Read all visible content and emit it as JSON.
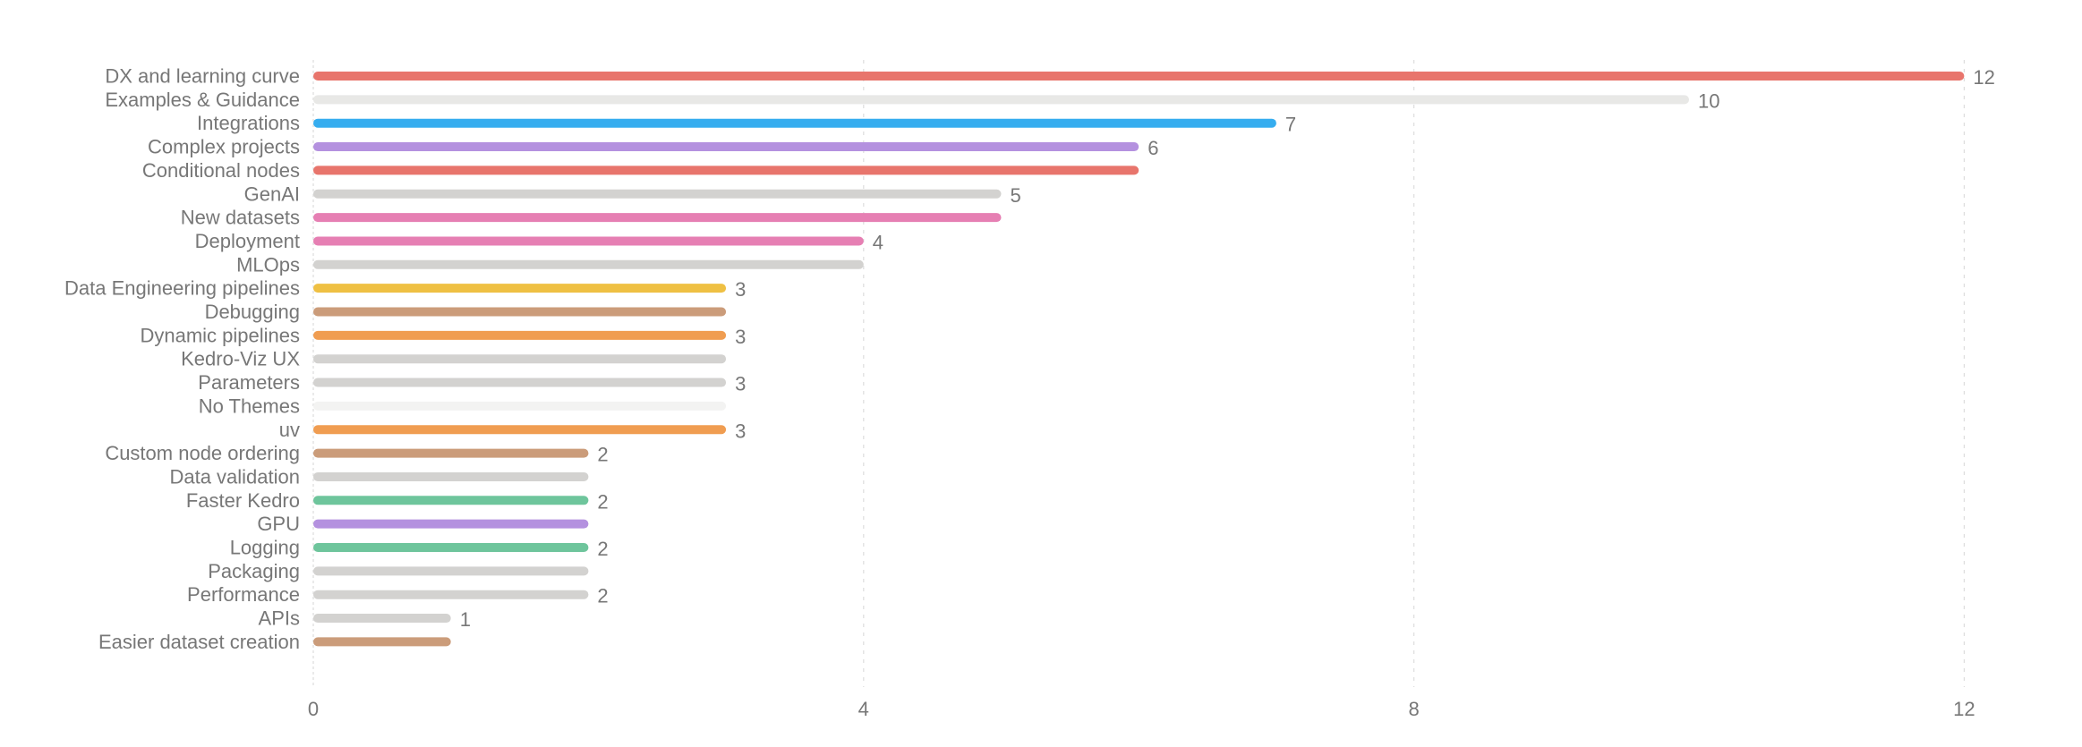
{
  "chart_data": {
    "type": "bar",
    "orientation": "horizontal",
    "title": "",
    "xlabel": "",
    "ylabel": "",
    "xlim": [
      0,
      13
    ],
    "x_ticks": [
      "0",
      "4",
      "8",
      "12"
    ],
    "grid": "vertical dashed",
    "legend": "none",
    "items": [
      {
        "label": "DX and learning curve",
        "value": 12,
        "value_label": "12",
        "color": "#E8756C"
      },
      {
        "label": "Examples & Guidance",
        "value": 10,
        "value_label": "10",
        "color": "#E8E8E6"
      },
      {
        "label": "Integrations",
        "value": 7,
        "value_label": "7",
        "color": "#36ADEF"
      },
      {
        "label": "Complex projects",
        "value": 6,
        "value_label": "6",
        "color": "#B491DF"
      },
      {
        "label": "Conditional nodes",
        "value": 6,
        "value_label": "",
        "color": "#E8756C"
      },
      {
        "label": "GenAI",
        "value": 5,
        "value_label": "5",
        "color": "#D3D2D0"
      },
      {
        "label": "New datasets",
        "value": 5,
        "value_label": "",
        "color": "#E67FB3"
      },
      {
        "label": "Deployment",
        "value": 4,
        "value_label": "4",
        "color": "#E67FB3"
      },
      {
        "label": "MLOps",
        "value": 4,
        "value_label": "",
        "color": "#D3D2D0"
      },
      {
        "label": "Data Engineering pipelines",
        "value": 3,
        "value_label": "3",
        "color": "#EFC043"
      },
      {
        "label": "Debugging",
        "value": 3,
        "value_label": "",
        "color": "#CB9C7A"
      },
      {
        "label": "Dynamic pipelines",
        "value": 3,
        "value_label": "3",
        "color": "#F09D51"
      },
      {
        "label": "Kedro-Viz UX",
        "value": 3,
        "value_label": "",
        "color": "#D3D2D0"
      },
      {
        "label": "Parameters",
        "value": 3,
        "value_label": "3",
        "color": "#D3D2D0"
      },
      {
        "label": "No Themes",
        "value": 3,
        "value_label": "",
        "color": "#F3F3F2"
      },
      {
        "label": "uv",
        "value": 3,
        "value_label": "3",
        "color": "#F09D51"
      },
      {
        "label": "Custom node ordering",
        "value": 2,
        "value_label": "2",
        "color": "#CB9C7A"
      },
      {
        "label": "Data validation",
        "value": 2,
        "value_label": "",
        "color": "#D3D2D0"
      },
      {
        "label": "Faster Kedro",
        "value": 2,
        "value_label": "2",
        "color": "#6EC59C"
      },
      {
        "label": "GPU",
        "value": 2,
        "value_label": "",
        "color": "#B491DF"
      },
      {
        "label": "Logging",
        "value": 2,
        "value_label": "2",
        "color": "#6EC59C"
      },
      {
        "label": "Packaging",
        "value": 2,
        "value_label": "",
        "color": "#D3D2D0"
      },
      {
        "label": "Performance",
        "value": 2,
        "value_label": "2",
        "color": "#D3D2D0"
      },
      {
        "label": "APIs",
        "value": 1,
        "value_label": "1",
        "color": "#D3D2D0"
      },
      {
        "label": "Easier dataset creation",
        "value": 1,
        "value_label": "",
        "color": "#CB9C7A"
      }
    ]
  }
}
